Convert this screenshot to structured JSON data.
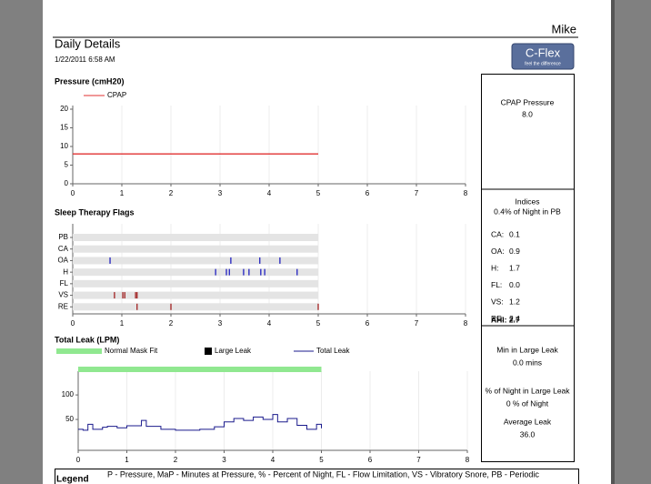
{
  "header": {
    "name": "Mike",
    "title": "Daily Details",
    "date": "1/22/2011 6:58 AM",
    "logo": "C-Flex",
    "logo_tagline": "feel the difference"
  },
  "side_panel": {
    "pressure_label": "CPAP Pressure",
    "pressure_value": "8.0",
    "indices_title": "Indices",
    "pb_text": "0.4% of Night in PB",
    "indices": [
      {
        "label": "CA:",
        "value": "0.1"
      },
      {
        "label": "OA:",
        "value": "0.9"
      },
      {
        "label": "H:",
        "value": "1.7"
      },
      {
        "label": "FL:",
        "value": "0.0"
      },
      {
        "label": "VS:",
        "value": "1.2"
      },
      {
        "label": "RE:",
        "value": "2.4"
      }
    ],
    "ahi": "AHI: 2.7",
    "large_leak_label": "Min in Large Leak",
    "large_leak_value": "0.0 mins",
    "pct_leak_label": "% of Night in Large Leak",
    "pct_leak_value": "0 % of Night",
    "avg_leak_label": "Average Leak",
    "avg_leak_value": "36.0"
  },
  "legend": {
    "title": "Legend",
    "text": "P - Pressure, MaP - Minutes at Pressure, % - Percent of Night, FL - Flow Limitation, VS - Vibratory Snore, PB - Periodic"
  },
  "chart_data": [
    {
      "type": "line",
      "title": "Pressure (cmH20)",
      "xlim": [
        0,
        8
      ],
      "xticks": [
        0,
        1,
        2,
        3,
        4,
        5,
        6,
        7,
        8
      ],
      "ylim": [
        0,
        20
      ],
      "yticks": [
        0,
        5,
        10,
        15,
        20
      ],
      "grid": true,
      "series": [
        {
          "name": "CPAP",
          "color": "#e03030",
          "x": [
            0,
            5
          ],
          "values": [
            8,
            8
          ]
        }
      ]
    },
    {
      "type": "event",
      "title": "Sleep Therapy Flags",
      "xlim": [
        0,
        8
      ],
      "xticks": [
        0,
        1,
        2,
        3,
        4,
        5,
        6,
        7,
        8
      ],
      "record_range": [
        0,
        5
      ],
      "rows": [
        {
          "label": "PB",
          "color": "#2020c0",
          "events": []
        },
        {
          "label": "CA",
          "color": "#2020c0",
          "events": []
        },
        {
          "label": "OA",
          "color": "#2020c0",
          "events": [
            0.76,
            3.22,
            3.81,
            4.22
          ]
        },
        {
          "label": "H",
          "color": "#2020c0",
          "events": [
            2.91,
            3.13,
            3.19,
            3.48,
            3.59,
            3.83,
            3.91,
            4.57
          ]
        },
        {
          "label": "FL",
          "color": "#2020c0",
          "events": []
        },
        {
          "label": "VS",
          "color": "#a02020",
          "events": [
            0.85,
            1.02,
            1.06,
            1.28,
            1.31
          ]
        },
        {
          "label": "RE",
          "color": "#a02020",
          "events": [
            1.31,
            2.0,
            5.0
          ]
        }
      ]
    },
    {
      "type": "line",
      "title": "Total Leak (LPM)",
      "xlim": [
        0,
        8
      ],
      "xticks": [
        0,
        1,
        2,
        3,
        4,
        5,
        6,
        7,
        8
      ],
      "ylim": [
        -13,
        141
      ],
      "yticks": [
        50,
        100
      ],
      "grid": true,
      "bands": [
        {
          "name": "Normal Mask Fit",
          "color": "#90e890",
          "start": 0,
          "end": 5
        }
      ],
      "series": [
        {
          "name": "Large Leak",
          "color": "#000000",
          "x": [],
          "values": []
        },
        {
          "name": "Total Leak",
          "color": "#1a1a8c",
          "x": [
            0,
            0.1,
            0.2,
            0.3,
            0.5,
            0.6,
            0.8,
            1.0,
            1.3,
            1.4,
            1.7,
            2.0,
            2.5,
            2.8,
            3.0,
            3.2,
            3.4,
            3.6,
            3.8,
            4.0,
            4.1,
            4.3,
            4.5,
            4.7,
            4.9,
            5.0
          ],
          "values": [
            30,
            28,
            40,
            30,
            34,
            36,
            33,
            37,
            48,
            36,
            30,
            28,
            30,
            35,
            45,
            52,
            48,
            55,
            50,
            60,
            45,
            52,
            38,
            30,
            40,
            32
          ]
        }
      ]
    }
  ]
}
